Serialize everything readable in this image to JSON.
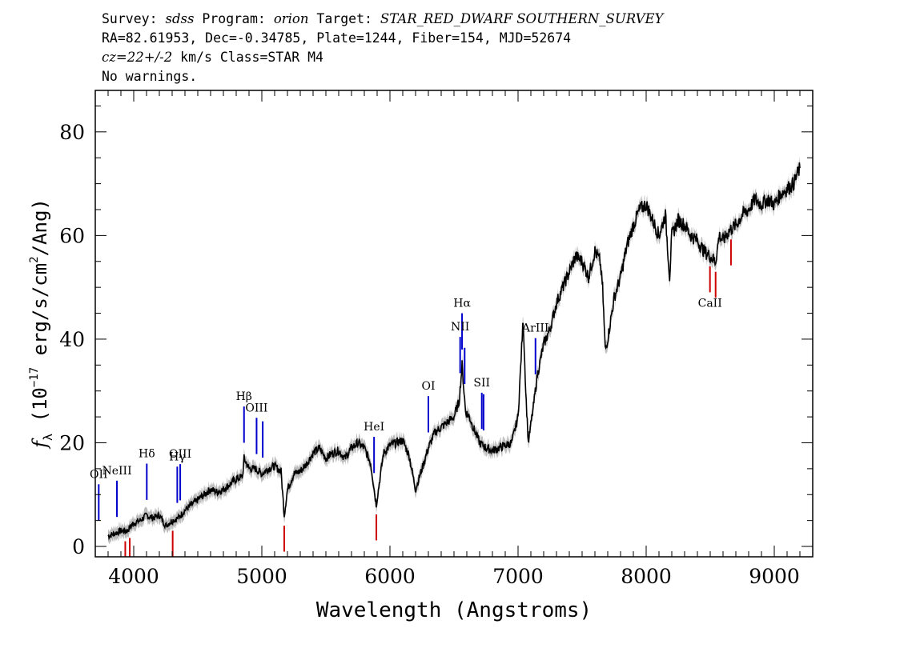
{
  "header": {
    "survey_label": "Survey:",
    "survey": "sdss",
    "program_label": "Program:",
    "program": "orion",
    "target_label": "Target:",
    "target": "STAR_RED_DWARF SOUTHERN_SURVEY",
    "line2": "RA=82.61953, Dec=-0.34785, Plate=1244, Fiber=154, MJD=52674",
    "cz_value": "cz=22+/-2",
    "cz_rest": " km/s Class=STAR M4",
    "line4": "No warnings."
  },
  "chart_data": {
    "type": "line",
    "xlabel": "Wavelength (Angstroms)",
    "ylabel_parts": [
      "f",
      "λ",
      " (10",
      "−17",
      " erg/s/cm",
      "2",
      "/Ang)"
    ],
    "xlim": [
      3700,
      9300
    ],
    "ylim": [
      -2,
      88
    ],
    "xticks": [
      4000,
      5000,
      6000,
      7000,
      8000,
      9000
    ],
    "yticks": [
      0,
      20,
      40,
      60,
      80
    ],
    "line_color": "#000000",
    "error_color": "#bbbbbb",
    "emission_color": "#0000cc",
    "absorption_color": "#cc0000",
    "series": [
      {
        "x": [
          3800,
          3850,
          3900,
          3950,
          3980,
          4000,
          4050,
          4100,
          4150,
          4200,
          4250,
          4300,
          4350,
          4400,
          4450,
          4500,
          4550,
          4600,
          4650,
          4700,
          4750,
          4800,
          4850,
          4861,
          4900,
          4950,
          5000,
          5050,
          5100,
          5150,
          5175,
          5200,
          5250,
          5300,
          5350,
          5400,
          5450,
          5500,
          5550,
          5600,
          5650,
          5700,
          5750,
          5800,
          5850,
          5893,
          5950,
          6000,
          6050,
          6100,
          6150,
          6200,
          6250,
          6300,
          6350,
          6400,
          6450,
          6500,
          6540,
          6563,
          6590,
          6620,
          6650,
          6700,
          6750,
          6800,
          6850,
          6900,
          6950,
          7000,
          7040,
          7060,
          7080,
          7120,
          7150,
          7200,
          7250,
          7300,
          7350,
          7400,
          7450,
          7500,
          7550,
          7600,
          7640,
          7660,
          7680,
          7700,
          7750,
          7800,
          7850,
          7900,
          7950,
          8000,
          8050,
          8100,
          8150,
          8183,
          8200,
          8250,
          8300,
          8350,
          8400,
          8450,
          8500,
          8542,
          8570,
          8600,
          8650,
          8700,
          8750,
          8800,
          8850,
          8900,
          8950,
          9000,
          9050,
          9100,
          9150,
          9200
        ],
        "y": [
          2,
          2.5,
          3,
          3,
          4,
          4.5,
          5,
          6,
          5.5,
          6,
          4,
          5,
          5.5,
          7,
          8,
          9,
          10,
          11,
          10.5,
          11,
          12,
          13,
          13.5,
          17,
          15,
          15,
          14,
          15,
          15.5,
          14.5,
          6,
          11,
          14,
          14.5,
          16,
          18,
          19,
          17,
          18,
          18.5,
          17,
          19,
          20,
          19,
          16,
          8,
          18,
          19.5,
          20,
          20.5,
          17.5,
          11,
          15,
          19,
          22,
          23,
          24,
          25,
          28,
          35,
          26,
          25,
          23,
          20,
          19,
          18.5,
          19,
          19.5,
          20,
          25,
          44,
          30,
          20,
          27,
          33,
          39,
          42,
          47,
          50,
          53,
          56,
          55,
          52,
          57,
          55,
          50,
          38,
          40,
          48,
          52,
          58,
          62,
          65,
          66,
          63,
          60,
          64,
          52,
          60,
          63,
          62,
          60,
          59,
          57,
          56,
          55,
          60,
          59,
          61,
          62,
          64,
          65,
          67,
          66,
          67,
          66,
          68,
          69,
          70,
          73
        ]
      }
    ],
    "emission_lines": [
      {
        "label": "OII",
        "x": 3727
      },
      {
        "label": "NeIII",
        "x": 3869
      },
      {
        "label": "Hδ",
        "x": 4102
      },
      {
        "label": "Hγ",
        "x": 4340
      },
      {
        "label": "OIII",
        "x": 4363
      },
      {
        "label": "Hβ",
        "x": 4861
      },
      {
        "label": "OIII",
        "x": 4959
      },
      {
        "label": "OIII",
        "x": 5007
      },
      {
        "label": "HeI",
        "x": 5876
      },
      {
        "label": "OI",
        "x": 6300
      },
      {
        "label": "NII",
        "x": 6548
      },
      {
        "label": "Hα",
        "x": 6563
      },
      {
        "label": "NII",
        "x": 6583
      },
      {
        "label": "SII",
        "x": 6717
      },
      {
        "label": "SII",
        "x": 6731
      },
      {
        "label": "ArIII",
        "x": 7136
      }
    ],
    "absorption_lines": [
      {
        "label": "",
        "x": 3934
      },
      {
        "label": "",
        "x": 3969
      },
      {
        "label": "",
        "x": 4304
      },
      {
        "label": "",
        "x": 5175
      },
      {
        "label": "",
        "x": 5894
      },
      {
        "label": "CaII",
        "x": 8498
      },
      {
        "label": "",
        "x": 8542
      },
      {
        "label": "",
        "x": 8662
      }
    ]
  }
}
